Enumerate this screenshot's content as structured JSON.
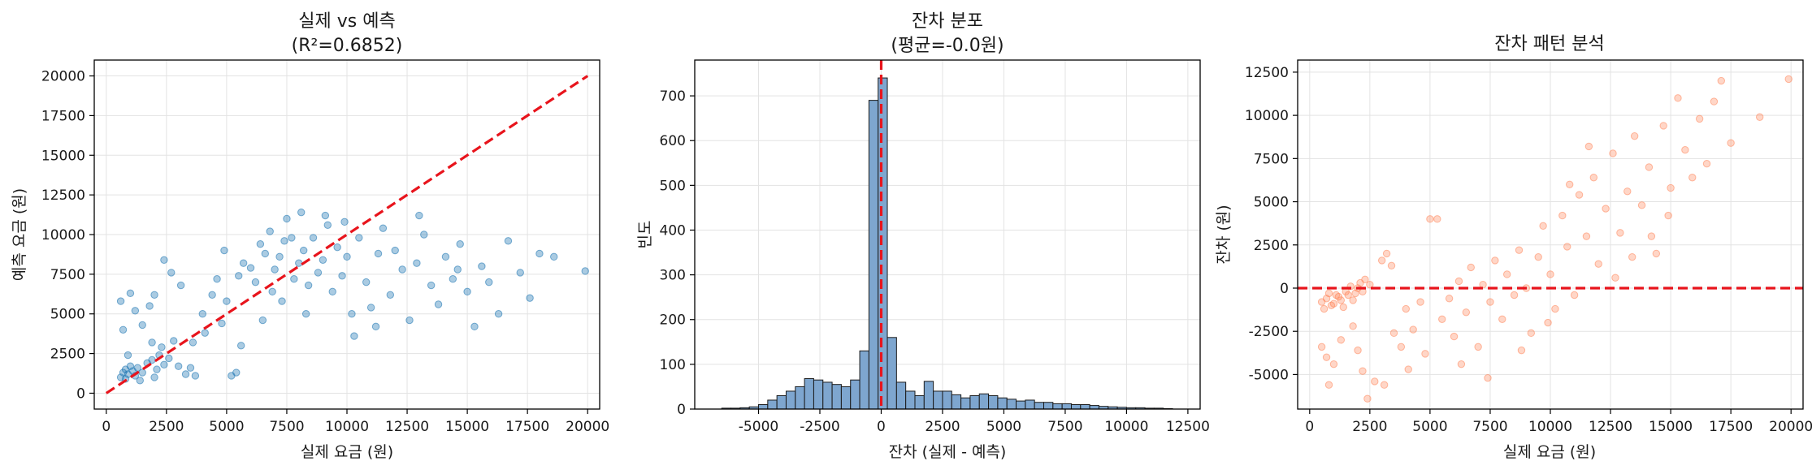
{
  "colors": {
    "scatter_blue": "#1f77b4",
    "hist_fill": "#7ea6cf",
    "hist_edge": "#1b1b1b",
    "scatter_orange": "#ff7f50",
    "ref_line": "#e8141c"
  },
  "chart_data": [
    {
      "type": "scatter",
      "title": "실제 vs 예측",
      "subtitle": "(R²=0.6852)",
      "xlabel": "실제 요금 (원)",
      "ylabel": "예측 요금 (원)",
      "xlim": [
        -500,
        20500
      ],
      "ylim": [
        -1000,
        21000
      ],
      "xticks": [
        0,
        2500,
        5000,
        7500,
        10000,
        12500,
        15000,
        17500,
        20000
      ],
      "yticks": [
        0,
        2500,
        5000,
        7500,
        10000,
        12500,
        15000,
        17500,
        20000
      ],
      "grid": true,
      "reference_line": {
        "style": "dashed",
        "from": [
          0,
          0
        ],
        "to": [
          20000,
          20000
        ]
      },
      "points": [
        [
          600,
          1000
        ],
        [
          700,
          1300
        ],
        [
          800,
          1500
        ],
        [
          900,
          1200
        ],
        [
          1000,
          1700
        ],
        [
          1100,
          1400
        ],
        [
          800,
          900
        ],
        [
          1200,
          1100
        ],
        [
          1300,
          1600
        ],
        [
          1500,
          1300
        ],
        [
          1700,
          1900
        ],
        [
          1900,
          2100
        ],
        [
          2100,
          1500
        ],
        [
          2200,
          2400
        ],
        [
          2400,
          1800
        ],
        [
          2600,
          2200
        ],
        [
          2000,
          1000
        ],
        [
          1400,
          800
        ],
        [
          900,
          2400
        ],
        [
          700,
          4000
        ],
        [
          600,
          5800
        ],
        [
          1000,
          6300
        ],
        [
          1200,
          5200
        ],
        [
          1500,
          4300
        ],
        [
          1800,
          5500
        ],
        [
          2000,
          6200
        ],
        [
          1900,
          3200
        ],
        [
          2300,
          2900
        ],
        [
          2800,
          3300
        ],
        [
          3000,
          1700
        ],
        [
          3300,
          1200
        ],
        [
          3500,
          1600
        ],
        [
          3700,
          1100
        ],
        [
          4000,
          5000
        ],
        [
          4400,
          6200
        ],
        [
          4600,
          7200
        ],
        [
          5000,
          5800
        ],
        [
          5200,
          1100
        ],
        [
          5400,
          1300
        ],
        [
          5500,
          7400
        ],
        [
          5700,
          8200
        ],
        [
          6000,
          7900
        ],
        [
          6200,
          7000
        ],
        [
          6400,
          9400
        ],
        [
          6600,
          8800
        ],
        [
          6800,
          10200
        ],
        [
          7000,
          7800
        ],
        [
          7200,
          8600
        ],
        [
          7400,
          9600
        ],
        [
          7500,
          11000
        ],
        [
          7800,
          7200
        ],
        [
          8000,
          8200
        ],
        [
          8200,
          9000
        ],
        [
          8400,
          6800
        ],
        [
          8600,
          9800
        ],
        [
          8800,
          7600
        ],
        [
          9000,
          8400
        ],
        [
          9200,
          10600
        ],
        [
          9400,
          6400
        ],
        [
          9600,
          9200
        ],
        [
          9800,
          7400
        ],
        [
          10000,
          8600
        ],
        [
          10300,
          3600
        ],
        [
          10500,
          9800
        ],
        [
          10800,
          7000
        ],
        [
          11000,
          5400
        ],
        [
          11300,
          8800
        ],
        [
          11500,
          10400
        ],
        [
          11800,
          6200
        ],
        [
          12000,
          9000
        ],
        [
          12300,
          7800
        ],
        [
          12600,
          4600
        ],
        [
          12900,
          8200
        ],
        [
          13200,
          10000
        ],
        [
          13500,
          6800
        ],
        [
          13800,
          5600
        ],
        [
          14100,
          8600
        ],
        [
          14400,
          7200
        ],
        [
          14700,
          9400
        ],
        [
          15000,
          6400
        ],
        [
          15300,
          4200
        ],
        [
          15600,
          8000
        ],
        [
          15900,
          7000
        ],
        [
          16300,
          5000
        ],
        [
          16700,
          9600
        ],
        [
          17200,
          7600
        ],
        [
          17600,
          6000
        ],
        [
          18000,
          8800
        ],
        [
          18600,
          8600
        ],
        [
          19900,
          7700
        ],
        [
          3600,
          3200
        ],
        [
          4100,
          3800
        ],
        [
          4800,
          4400
        ],
        [
          5600,
          3000
        ],
        [
          6500,
          4600
        ],
        [
          7300,
          5800
        ],
        [
          8100,
          11400
        ],
        [
          9100,
          11200
        ],
        [
          10200,
          5000
        ],
        [
          11200,
          4200
        ],
        [
          3100,
          6800
        ],
        [
          2700,
          7600
        ],
        [
          2400,
          8400
        ],
        [
          4900,
          9000
        ],
        [
          6900,
          6400
        ],
        [
          7700,
          9800
        ],
        [
          8300,
          5000
        ],
        [
          9900,
          10800
        ],
        [
          13000,
          11200
        ],
        [
          14600,
          7800
        ]
      ]
    },
    {
      "type": "bar",
      "subtype": "histogram",
      "title": "잔차 분포",
      "subtitle": "(평균=-0.0원)",
      "xlabel": "잔차 (실제 - 예측)",
      "ylabel": "빈도",
      "xlim": [
        -7600,
        13000
      ],
      "ylim": [
        0,
        780
      ],
      "xticks": [
        -5000,
        -2500,
        0,
        2500,
        5000,
        7500,
        10000,
        12500
      ],
      "yticks": [
        0,
        100,
        200,
        300,
        400,
        500,
        600,
        700
      ],
      "grid": true,
      "reference_line": {
        "style": "dashed",
        "x": 0
      },
      "bin_edges": [
        -6500,
        -6125,
        -5750,
        -5375,
        -5000,
        -4625,
        -4250,
        -3875,
        -3500,
        -3125,
        -2750,
        -2375,
        -2000,
        -1625,
        -1250,
        -875,
        -500,
        -125,
        250,
        625,
        1000,
        1375,
        1750,
        2125,
        2500,
        2875,
        3250,
        3625,
        4000,
        4375,
        4750,
        5125,
        5500,
        5875,
        6250,
        6625,
        7000,
        7375,
        7750,
        8125,
        8500,
        8875,
        9250,
        9625,
        10000,
        10375,
        10750,
        11125,
        11500,
        11875
      ],
      "counts": [
        2,
        2,
        3,
        5,
        10,
        20,
        30,
        40,
        50,
        68,
        65,
        60,
        55,
        50,
        65,
        130,
        690,
        740,
        160,
        60,
        40,
        30,
        62,
        40,
        40,
        32,
        25,
        30,
        34,
        30,
        25,
        22,
        18,
        20,
        15,
        15,
        12,
        12,
        10,
        10,
        8,
        6,
        5,
        4,
        3,
        3,
        2,
        2,
        1
      ]
    },
    {
      "type": "scatter",
      "title": "잔차 패턴 분석",
      "xlabel": "실제 요금 (원)",
      "ylabel": "잔차 (원)",
      "xlim": [
        -500,
        20500
      ],
      "ylim": [
        -7000,
        13200
      ],
      "xticks": [
        0,
        2500,
        5000,
        7500,
        10000,
        12500,
        15000,
        17500,
        20000
      ],
      "yticks": [
        -5000,
        -2500,
        0,
        2500,
        5000,
        7500,
        10000,
        12500
      ],
      "grid": true,
      "reference_line": {
        "style": "dashed",
        "y": 0
      },
      "points": [
        [
          500,
          -800
        ],
        [
          700,
          -600
        ],
        [
          900,
          -1000
        ],
        [
          1100,
          -400
        ],
        [
          1300,
          -700
        ],
        [
          1500,
          -200
        ],
        [
          1700,
          100
        ],
        [
          1900,
          -300
        ],
        [
          2100,
          300
        ],
        [
          2300,
          500
        ],
        [
          2500,
          200
        ],
        [
          600,
          -1200
        ],
        [
          800,
          -300
        ],
        [
          1000,
          -900
        ],
        [
          1200,
          -500
        ],
        [
          1400,
          -1100
        ],
        [
          1600,
          -400
        ],
        [
          1800,
          -700
        ],
        [
          2000,
          0
        ],
        [
          2200,
          -200
        ],
        [
          500,
          -3400
        ],
        [
          700,
          -4000
        ],
        [
          800,
          -5600
        ],
        [
          1000,
          -4400
        ],
        [
          1300,
          -3000
        ],
        [
          1800,
          -2200
        ],
        [
          2000,
          -3600
        ],
        [
          2200,
          -4800
        ],
        [
          2400,
          -6400
        ],
        [
          2700,
          -5400
        ],
        [
          3000,
          1600
        ],
        [
          3200,
          2000
        ],
        [
          3400,
          1300
        ],
        [
          3500,
          -2600
        ],
        [
          3800,
          -3400
        ],
        [
          4000,
          -1200
        ],
        [
          4300,
          -2400
        ],
        [
          4600,
          -800
        ],
        [
          4800,
          -3800
        ],
        [
          5000,
          4000
        ],
        [
          5300,
          4000
        ],
        [
          5500,
          -1800
        ],
        [
          5800,
          -600
        ],
        [
          6000,
          -2800
        ],
        [
          6200,
          400
        ],
        [
          6500,
          -1400
        ],
        [
          6700,
          1200
        ],
        [
          7000,
          -3400
        ],
        [
          7200,
          200
        ],
        [
          7500,
          -800
        ],
        [
          7700,
          1600
        ],
        [
          8000,
          -1800
        ],
        [
          8200,
          800
        ],
        [
          8500,
          -400
        ],
        [
          8700,
          2200
        ],
        [
          9000,
          0
        ],
        [
          9200,
          -2600
        ],
        [
          9500,
          1800
        ],
        [
          9700,
          3600
        ],
        [
          10000,
          800
        ],
        [
          10200,
          -1200
        ],
        [
          10500,
          4200
        ],
        [
          10700,
          2400
        ],
        [
          11000,
          -400
        ],
        [
          11200,
          5400
        ],
        [
          11500,
          3000
        ],
        [
          11800,
          6400
        ],
        [
          12000,
          1400
        ],
        [
          12300,
          4600
        ],
        [
          12600,
          7800
        ],
        [
          12900,
          3200
        ],
        [
          13200,
          5600
        ],
        [
          13500,
          8800
        ],
        [
          13800,
          4800
        ],
        [
          14100,
          7000
        ],
        [
          14400,
          2000
        ],
        [
          14700,
          9400
        ],
        [
          15000,
          5800
        ],
        [
          15300,
          11000
        ],
        [
          15600,
          8000
        ],
        [
          15900,
          6400
        ],
        [
          16200,
          9800
        ],
        [
          16500,
          7200
        ],
        [
          16800,
          10800
        ],
        [
          17100,
          12000
        ],
        [
          17500,
          8400
        ],
        [
          18700,
          9900
        ],
        [
          19900,
          12100
        ],
        [
          6300,
          -4400
        ],
        [
          7400,
          -5200
        ],
        [
          8800,
          -3600
        ],
        [
          9900,
          -2000
        ],
        [
          10800,
          6000
        ],
        [
          11600,
          8200
        ],
        [
          12700,
          600
        ],
        [
          13400,
          1800
        ],
        [
          14200,
          3000
        ],
        [
          14900,
          4200
        ],
        [
          3100,
          -5600
        ],
        [
          4100,
          -4700
        ]
      ]
    }
  ]
}
